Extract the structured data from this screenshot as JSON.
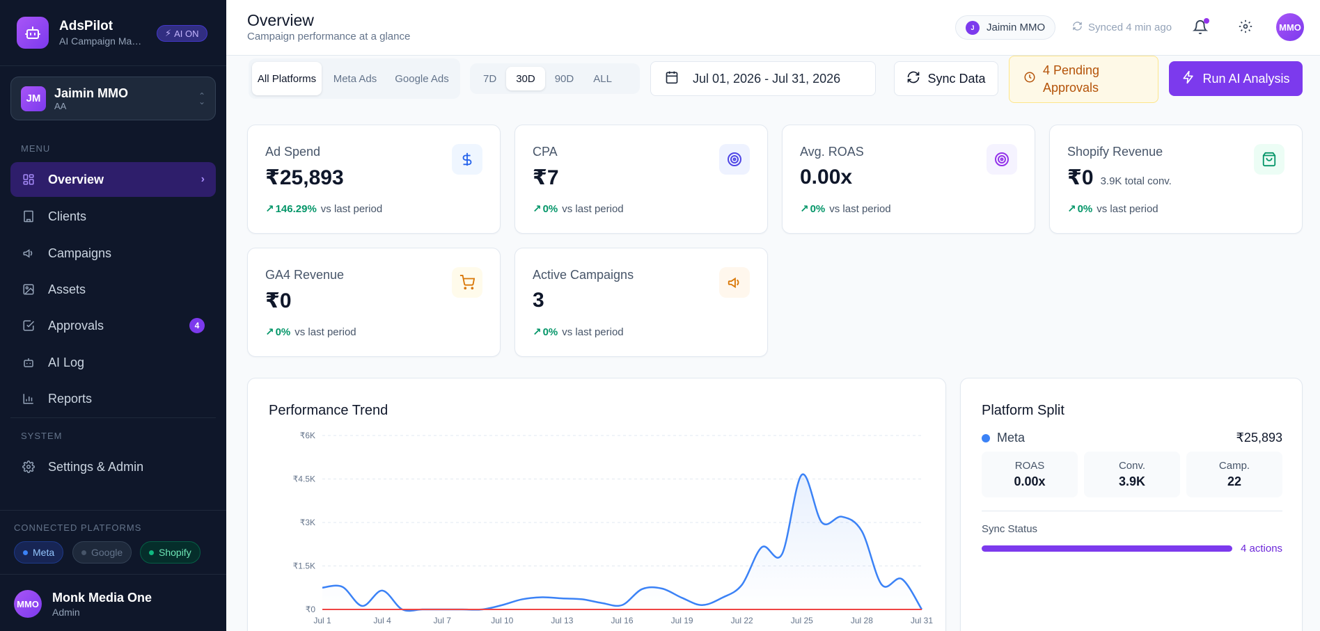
{
  "brand": {
    "name": "AdsPilot",
    "subtitle": "AI Campaign Man...",
    "ai_badge": "AI ON"
  },
  "client": {
    "initials": "JM",
    "name": "Jaimin MMO",
    "sub": "AA"
  },
  "sidebar": {
    "menu_label": "MENU",
    "items": [
      {
        "label": "Overview",
        "icon": "grid-icon",
        "active": true
      },
      {
        "label": "Clients",
        "icon": "building-icon"
      },
      {
        "label": "Campaigns",
        "icon": "megaphone-icon"
      },
      {
        "label": "Assets",
        "icon": "image-icon"
      },
      {
        "label": "Approvals",
        "icon": "check-square-icon",
        "badge": "4"
      },
      {
        "label": "AI Log",
        "icon": "bot-icon"
      },
      {
        "label": "Reports",
        "icon": "bar-chart-icon"
      }
    ],
    "system_label": "SYSTEM",
    "system_items": [
      {
        "label": "Settings & Admin",
        "icon": "gear-icon"
      }
    ],
    "connected_label": "CONNECTED PLATFORMS",
    "platforms": [
      "Meta",
      "Google",
      "Shopify"
    ]
  },
  "user": {
    "initials": "MMO",
    "name": "Monk Media One",
    "role": "Admin"
  },
  "header": {
    "title": "Overview",
    "subtitle": "Campaign performance at a glance",
    "client_chip": {
      "initial": "J",
      "name": "Jaimin MMO"
    },
    "sync_status": "Synced 4 min ago",
    "avatar": "MMO"
  },
  "toolbar": {
    "platform_tabs": [
      "All Platforms",
      "Meta Ads",
      "Google Ads"
    ],
    "platform_selected": "All Platforms",
    "range_tabs": [
      "7D",
      "30D",
      "90D",
      "ALL"
    ],
    "range_selected": "30D",
    "date_range": "Jul 01, 2026 - Jul 31, 2026",
    "sync_label": "Sync Data",
    "pending_label": "4 Pending Approvals",
    "run_label": "Run AI Analysis"
  },
  "kpis": [
    {
      "label": "Ad Spend",
      "value": "₹25,893",
      "sub": "",
      "change": "146.29%",
      "suffix": "vs last period",
      "icon": "dollar-icon",
      "tone": "blue"
    },
    {
      "label": "CPA",
      "value": "₹7",
      "sub": "",
      "change": "0%",
      "suffix": "vs last period",
      "icon": "target-icon",
      "tone": "indigo"
    },
    {
      "label": "Avg. ROAS",
      "value": "0.00x",
      "sub": "",
      "change": "0%",
      "suffix": "vs last period",
      "icon": "target-icon",
      "tone": "purple"
    },
    {
      "label": "Shopify Revenue",
      "value": "₹0",
      "sub": "3.9K total conv.",
      "change": "0%",
      "suffix": "vs last period",
      "icon": "shopping-bag-icon",
      "tone": "green"
    },
    {
      "label": "GA4 Revenue",
      "value": "₹0",
      "sub": "",
      "change": "0%",
      "suffix": "vs last period",
      "icon": "cart-icon",
      "tone": "amber"
    },
    {
      "label": "Active Campaigns",
      "value": "3",
      "sub": "",
      "change": "0%",
      "suffix": "vs last period",
      "icon": "megaphone-icon",
      "tone": "orange"
    }
  ],
  "performance": {
    "title": "Performance Trend"
  },
  "chart_data": {
    "type": "line",
    "title": "Performance Trend",
    "x": [
      "Jul 1",
      "Jul 2",
      "Jul 3",
      "Jul 4",
      "Jul 5",
      "Jul 6",
      "Jul 7",
      "Jul 8",
      "Jul 9",
      "Jul 10",
      "Jul 11",
      "Jul 12",
      "Jul 13",
      "Jul 14",
      "Jul 15",
      "Jul 16",
      "Jul 17",
      "Jul 18",
      "Jul 19",
      "Jul 20",
      "Jul 21",
      "Jul 22",
      "Jul 23",
      "Jul 24",
      "Jul 25",
      "Jul 26",
      "Jul 27",
      "Jul 28",
      "Jul 29",
      "Jul 30",
      "Jul 31"
    ],
    "x_ticks": [
      "Jul 1",
      "Jul 4",
      "Jul 7",
      "Jul 10",
      "Jul 13",
      "Jul 16",
      "Jul 19",
      "Jul 22",
      "Jul 25",
      "Jul 28",
      "Jul 31"
    ],
    "y_ticks": [
      "₹0",
      "₹1.5K",
      "₹3K",
      "₹4.5K",
      "₹6K"
    ],
    "ylim": [
      0,
      6000
    ],
    "series": [
      {
        "color": "#3b82f6",
        "fill": true,
        "values": [
          750,
          780,
          120,
          650,
          0,
          0,
          0,
          0,
          0,
          150,
          350,
          420,
          380,
          350,
          220,
          150,
          700,
          720,
          400,
          150,
          400,
          850,
          2150,
          1900,
          4650,
          3000,
          3200,
          2700,
          850,
          1050,
          0
        ]
      },
      {
        "color": "#10b981",
        "fill": false,
        "values": [
          0,
          0,
          0,
          0,
          0,
          0,
          0,
          0,
          0,
          0,
          0,
          0,
          0,
          0,
          0,
          0,
          0,
          0,
          0,
          0,
          0,
          0,
          0,
          0,
          0,
          0,
          0,
          0,
          0,
          0,
          0
        ]
      },
      {
        "color": "#ef4444",
        "fill": false,
        "values": [
          0,
          0,
          0,
          0,
          0,
          0,
          0,
          0,
          0,
          0,
          0,
          0,
          0,
          0,
          0,
          0,
          0,
          0,
          0,
          0,
          0,
          0,
          0,
          0,
          0,
          0,
          0,
          0,
          0,
          0,
          0
        ]
      }
    ],
    "grid": true
  },
  "platform_split": {
    "title": "Platform Split",
    "platform": "Meta",
    "amount": "₹25,893",
    "stats": [
      {
        "label": "ROAS",
        "value": "0.00x"
      },
      {
        "label": "Conv.",
        "value": "3.9K"
      },
      {
        "label": "Camp.",
        "value": "22"
      }
    ],
    "sync_label": "Sync Status",
    "sync_text": "4 actions",
    "sync_progress": 1.0
  },
  "colors": {
    "sidebar_bg": "#0f172a",
    "accent": "#7c3aed",
    "positive": "#059669"
  }
}
